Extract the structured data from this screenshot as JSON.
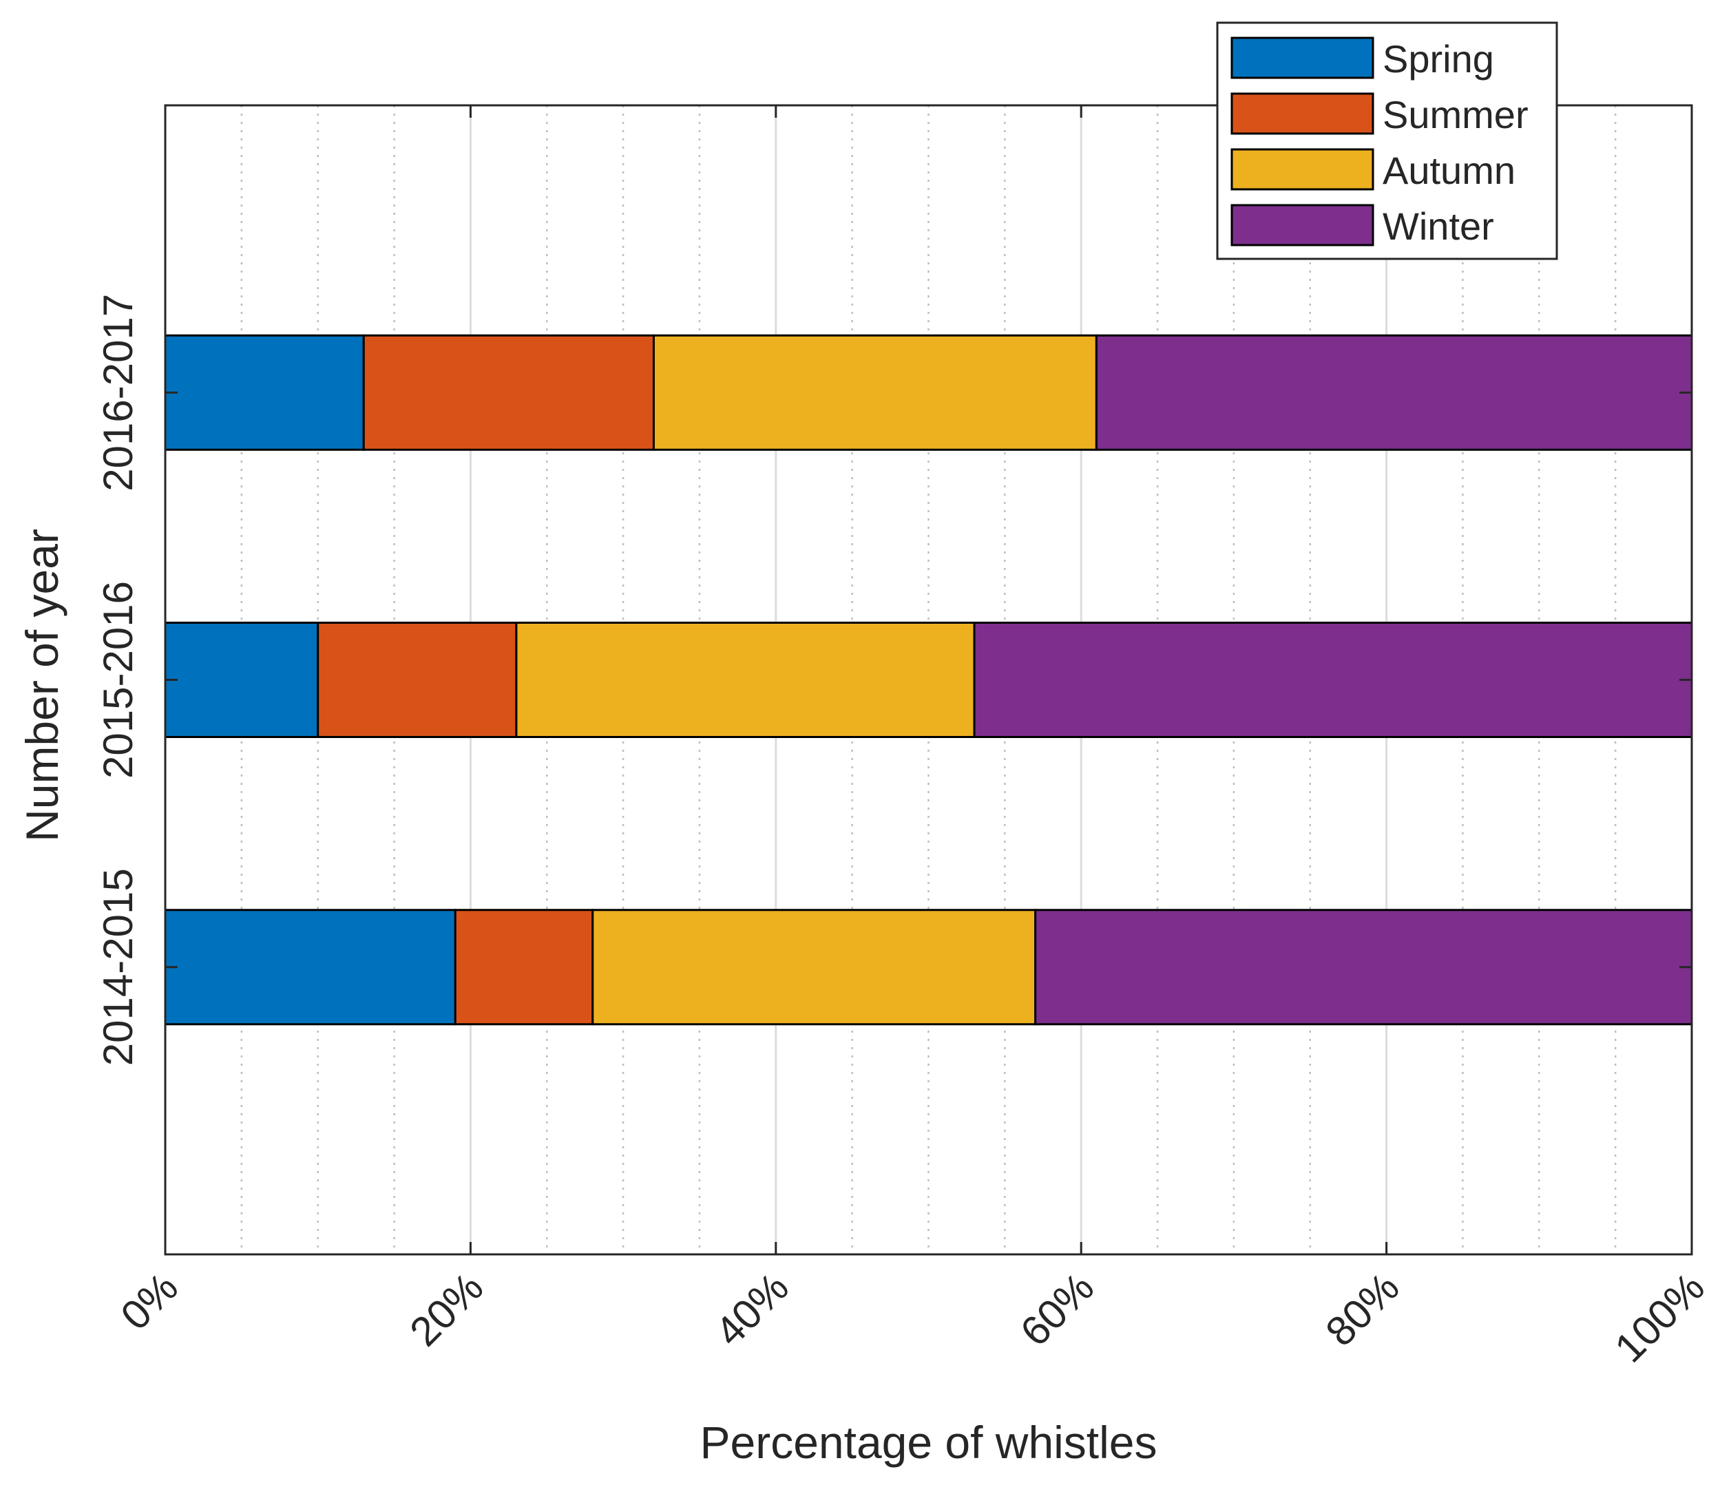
{
  "chart_data": {
    "type": "bar",
    "orientation": "horizontal",
    "stacked": true,
    "categories": [
      "2014-2015",
      "2015-2016",
      "2016-2017"
    ],
    "series": [
      {
        "name": "Spring",
        "color": "#0072BD",
        "values": [
          19,
          10,
          13
        ]
      },
      {
        "name": "Summer",
        "color": "#D95319",
        "values": [
          9,
          13,
          19
        ]
      },
      {
        "name": "Autumn",
        "color": "#EDB120",
        "values": [
          29,
          30,
          29
        ]
      },
      {
        "name": "Winter",
        "color": "#7E2F8E",
        "values": [
          43,
          47,
          39
        ]
      }
    ],
    "xlabel": "Percentage of whistles",
    "ylabel": "Number of year",
    "xlim": [
      0,
      100
    ],
    "xticks": [
      "0%",
      "20%",
      "40%",
      "60%",
      "80%",
      "100%"
    ],
    "grid": true,
    "legend_position": "top-right"
  }
}
